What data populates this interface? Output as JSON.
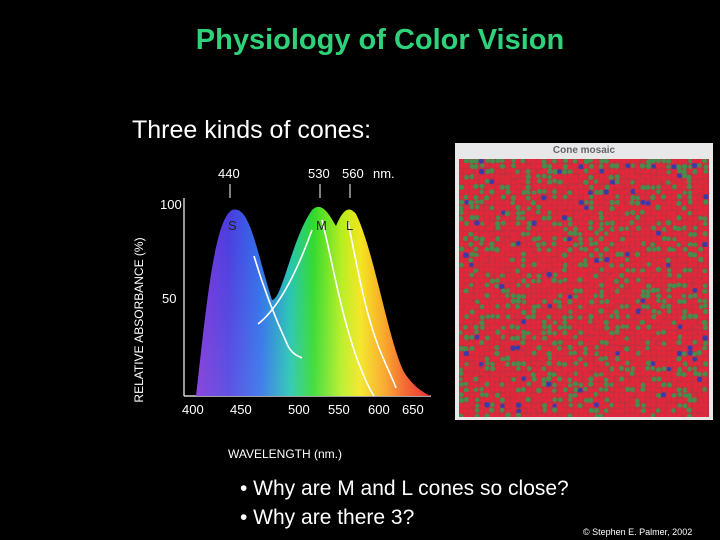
{
  "slide": {
    "title": "Physiology of Color Vision",
    "subtitle": "Three kinds of cones:",
    "bullets": [
      "• Why are M and L cones so close?",
      "• Why are there 3?"
    ],
    "credit": "© Stephen E. Palmer, 2002"
  },
  "figure": {
    "y_axis_label": "RELATIVE ABSORBANCE (%)",
    "x_axis_label": "WAVELENGTH (nm.)",
    "y_ticks": [
      "100",
      "50"
    ],
    "x_ticks": [
      "400",
      "450",
      "500",
      "550",
      "600",
      "650"
    ],
    "peak_labels": [
      "440",
      "530",
      "560",
      "nm."
    ],
    "curve_labels": [
      "S",
      "M",
      "L"
    ],
    "peaks_nm": [
      440,
      530,
      560
    ]
  },
  "mosaic": {
    "title": "Cone mosaic",
    "colors": {
      "background": "#e8e8ea",
      "red": "#e0283a",
      "green": "#4a8a4c",
      "blue": "#3a3aaa"
    }
  },
  "colors": {
    "title": "#2fd27a",
    "text": "#ffffff",
    "background": "#000000"
  }
}
